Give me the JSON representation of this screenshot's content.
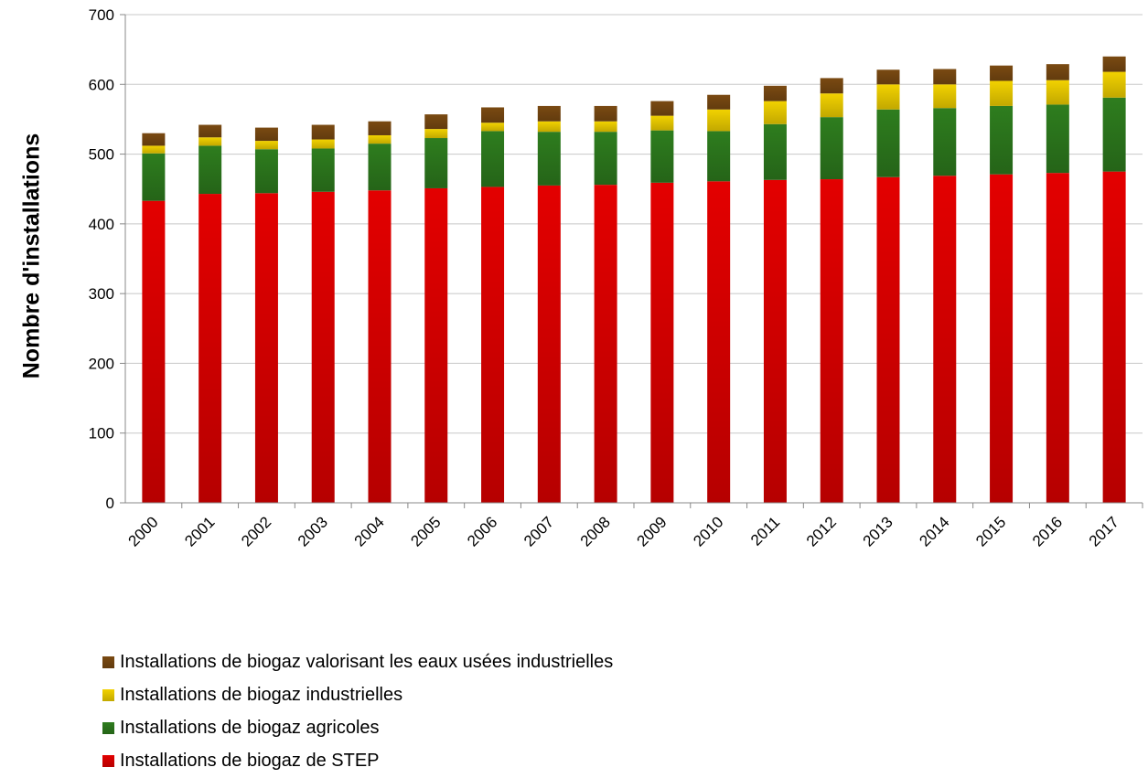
{
  "chart_data": {
    "type": "bar",
    "stacked": true,
    "title": "",
    "xlabel": "",
    "ylabel": "Nombre d'installations",
    "ylim": [
      0,
      700
    ],
    "yticks": [
      0,
      100,
      200,
      300,
      400,
      500,
      600,
      700
    ],
    "grid": true,
    "legend_position": "bottom",
    "categories": [
      "2000",
      "2001",
      "2002",
      "2003",
      "2004",
      "2005",
      "2006",
      "2007",
      "2008",
      "2009",
      "2010",
      "2011",
      "2012",
      "2013",
      "2014",
      "2015",
      "2016",
      "2017"
    ],
    "series": [
      {
        "name": "Installations de biogaz de STEP",
        "color": "#e30000",
        "values": [
          433,
          443,
          444,
          446,
          448,
          451,
          453,
          455,
          456,
          459,
          461,
          463,
          464,
          467,
          469,
          471,
          473,
          475
        ]
      },
      {
        "name": "Installations de biogaz agricoles",
        "color": "#2e7d1e",
        "values": [
          68,
          69,
          63,
          62,
          67,
          72,
          80,
          77,
          76,
          75,
          72,
          80,
          89,
          97,
          97,
          98,
          98,
          106
        ]
      },
      {
        "name": "Installations de biogaz industrielles",
        "color": "#f2d200",
        "values": [
          11,
          12,
          12,
          13,
          12,
          13,
          12,
          15,
          15,
          21,
          31,
          33,
          34,
          36,
          34,
          36,
          35,
          37
        ]
      },
      {
        "name": "Installations de biogaz valorisant les eaux usées industrielles",
        "color": "#7a4a12",
        "values": [
          18,
          18,
          19,
          21,
          20,
          21,
          22,
          22,
          22,
          21,
          21,
          22,
          22,
          21,
          22,
          22,
          23,
          22
        ]
      }
    ]
  }
}
